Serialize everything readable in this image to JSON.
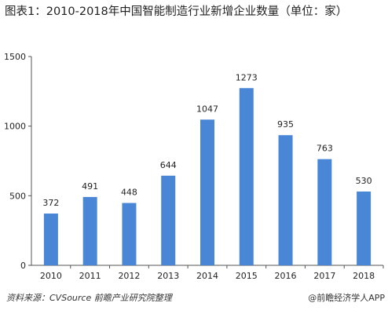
{
  "chart_data": {
    "type": "bar",
    "title": "图表1：2010-2018年中国智能制造行业新增企业数量（单位：家）",
    "categories": [
      "2010",
      "2011",
      "2012",
      "2013",
      "2014",
      "2015",
      "2016",
      "2017",
      "2018"
    ],
    "values": [
      372,
      491,
      448,
      644,
      1047,
      1273,
      935,
      763,
      530
    ],
    "ylim": [
      0,
      1500
    ],
    "yticks": [
      0,
      500,
      1000,
      1500
    ],
    "grid": false,
    "bar_color": "#4a86d6"
  },
  "footer": {
    "source": "资料来源：CVSource 前瞻产业研究院整理",
    "credit": "@前瞻经济学人APP"
  }
}
